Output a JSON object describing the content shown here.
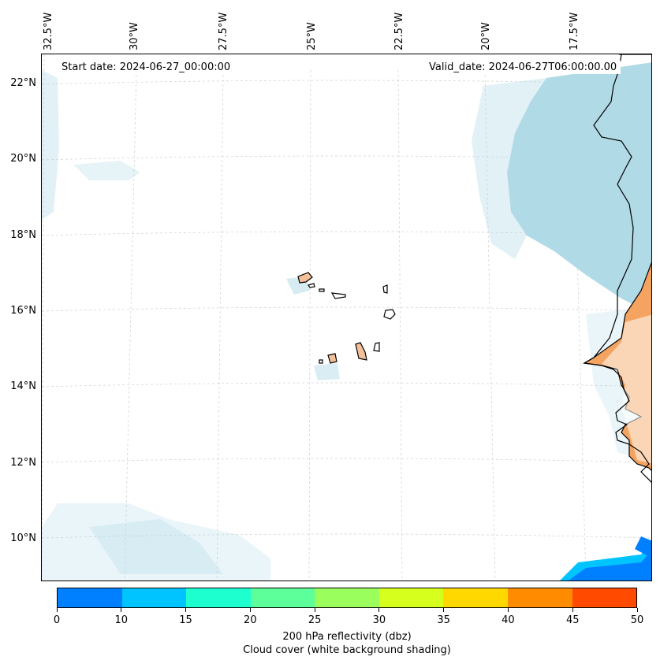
{
  "map": {
    "header_left": "Start date: 2024-06-27_00:00:00",
    "header_right": "Valid_date: 2024-06-27T06:00:00.00",
    "lon_labels": [
      "32.5°W",
      "30°W",
      "27.5°W",
      "25°W",
      "22.5°W",
      "20°W",
      "17.5°W"
    ],
    "lat_labels": [
      "22°N",
      "20°N",
      "18°N",
      "16°N",
      "14°N",
      "12°N",
      "10°N"
    ],
    "colors": {
      "land": "#f4a460",
      "cloud": "#add8e6",
      "reflectivity_low": "#0080ff"
    }
  },
  "colorbar": {
    "ticks": [
      "0",
      "10",
      "15",
      "20",
      "25",
      "30",
      "35",
      "40",
      "45",
      "50"
    ],
    "colors": [
      "#0080ff",
      "#00c4ff",
      "#1effd0",
      "#5cff9a",
      "#9aff5c",
      "#d7ff1e",
      "#ffd800",
      "#ff8c00",
      "#ff4a00"
    ],
    "label_line1": "200 hPa reflectivity (dbz)",
    "label_line2": "Cloud cover (white background shading)"
  }
}
